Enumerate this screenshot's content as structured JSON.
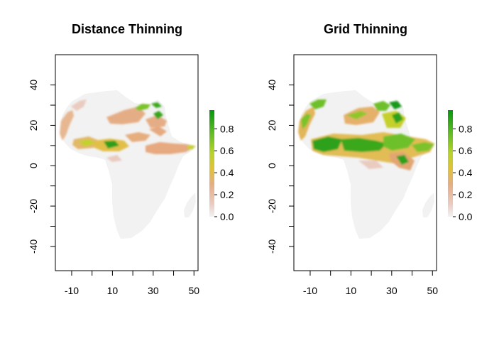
{
  "chart_data": [
    {
      "type": "heatmap",
      "title": "Distance Thinning",
      "xlabel": "",
      "ylabel": "",
      "xlim": [
        -18,
        52
      ],
      "ylim": [
        -52,
        55
      ],
      "x_ticks": [
        "-10",
        "10",
        "30",
        "50"
      ],
      "y_ticks": [
        "40",
        "20",
        "0",
        "-20",
        "-40"
      ],
      "legend": {
        "ticks": [
          "0.8",
          "0.6",
          "0.4",
          "0.2",
          "0.0"
        ],
        "range": [
          0,
          0.97
        ],
        "placement": "right"
      },
      "colors": {
        "background": "#f2f2f2",
        "low": "#e9bfa4",
        "mid": "#e0b255",
        "high": "#6fc02b",
        "top": "#1a9a17"
      },
      "regions": [
        {
          "lon": 2,
          "lat": 21,
          "level": 0.25
        },
        {
          "lon": 13,
          "lat": 22,
          "level": 0.3
        },
        {
          "lon": 29,
          "lat": 32,
          "level": 0.7
        },
        {
          "lon": 34,
          "lat": 24,
          "level": 0.8
        },
        {
          "lon": 3,
          "lat": 9,
          "level": 0.5
        },
        {
          "lon": 10,
          "lat": 11,
          "level": 0.85
        },
        {
          "lon": 25,
          "lat": 10,
          "level": 0.3
        },
        {
          "lon": 42,
          "lat": 8,
          "level": 0.25
        }
      ]
    },
    {
      "type": "heatmap",
      "title": "Grid Thinning",
      "xlabel": "",
      "ylabel": "",
      "xlim": [
        -18,
        52
      ],
      "ylim": [
        -52,
        55
      ],
      "x_ticks": [
        "-10",
        "10",
        "30",
        "50"
      ],
      "y_ticks": [
        "40",
        "20",
        "0",
        "-20",
        "-40"
      ],
      "legend": {
        "ticks": [
          "0.8",
          "0.6",
          "0.4",
          "0.2",
          "0.0"
        ],
        "range": [
          0,
          0.97
        ],
        "placement": "right"
      },
      "colors": {
        "background": "#f2f2f2",
        "low": "#e9bfa4",
        "mid": "#e0b255",
        "high": "#6fc02b",
        "top": "#1a9a17"
      },
      "regions": [
        {
          "lon": -12,
          "lat": 24,
          "level": 0.8
        },
        {
          "lon": 7,
          "lat": 24,
          "level": 0.7
        },
        {
          "lon": 30,
          "lat": 30,
          "level": 0.9
        },
        {
          "lon": 32,
          "lat": 20,
          "level": 0.75
        },
        {
          "lon": 0,
          "lat": 10,
          "level": 0.95
        },
        {
          "lon": 20,
          "lat": 10,
          "level": 0.85
        },
        {
          "lon": 38,
          "lat": 6,
          "level": 0.8
        },
        {
          "lon": 46,
          "lat": 10,
          "level": 0.8
        }
      ]
    }
  ]
}
